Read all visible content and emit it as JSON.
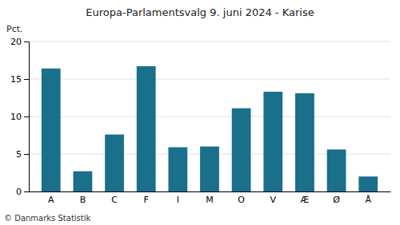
{
  "chart_data": {
    "type": "bar",
    "title": "Europa-Parlamentsvalg 9. juni 2024 - Karise",
    "ylabel": "Pct.",
    "categories": [
      "A",
      "B",
      "C",
      "F",
      "I",
      "M",
      "O",
      "V",
      "Æ",
      "Ø",
      "Å"
    ],
    "values": [
      16.4,
      2.7,
      7.6,
      16.7,
      5.9,
      6.0,
      11.1,
      13.3,
      13.1,
      5.6,
      2.0
    ],
    "color": "#1a6f8a",
    "ylim": [
      0,
      20
    ],
    "yticks": [
      0,
      5,
      10,
      15,
      20
    ],
    "grid": true,
    "annotations": [
      "© Danmarks Statistik"
    ]
  }
}
